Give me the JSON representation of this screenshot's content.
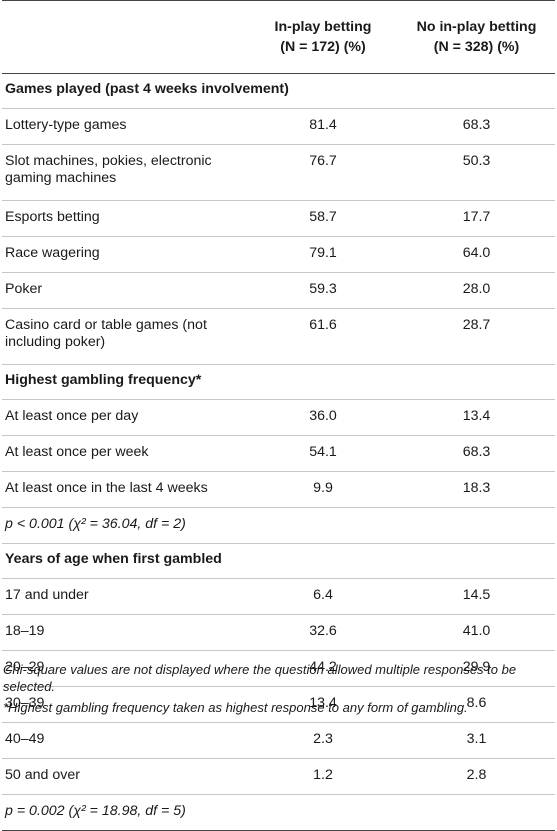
{
  "header": {
    "col1": "",
    "col2_line1": "In-play betting",
    "col2_line2": "(N = 172) (%)",
    "col3_line1": "No in-play betting",
    "col3_line2": "(N = 328) (%)"
  },
  "sections": [
    {
      "title": "Games played (past 4 weeks involvement)",
      "rows": [
        {
          "label": "Lottery-type games",
          "a": "81.4",
          "b": "68.3"
        },
        {
          "label": "Slot machines, pokies, electronic gaming machines",
          "a": "76.7",
          "b": "50.3"
        },
        {
          "label": "Esports betting",
          "a": "58.7",
          "b": "17.7"
        },
        {
          "label": "Race wagering",
          "a": "79.1",
          "b": "64.0"
        },
        {
          "label": "Poker",
          "a": "59.3",
          "b": "28.0"
        },
        {
          "label": "Casino card or table games (not including poker)",
          "a": "61.6",
          "b": "28.7"
        }
      ]
    },
    {
      "title": "Highest gambling frequency*",
      "rows": [
        {
          "label": "At least once per day",
          "a": "36.0",
          "b": "13.4"
        },
        {
          "label": "At least once per week",
          "a": "54.1",
          "b": "68.3"
        },
        {
          "label": "At least once in the last 4 weeks",
          "a": "9.9",
          "b": "18.3"
        }
      ],
      "stat": "p < 0.001 (χ² = 36.04, df = 2)"
    },
    {
      "title": "Years of age when first gambled",
      "rows": [
        {
          "label": "17 and under",
          "a": "6.4",
          "b": "14.5"
        },
        {
          "label": "18–19",
          "a": "32.6",
          "b": "41.0"
        },
        {
          "label": "20–29",
          "a": "44.2",
          "b": "29.9"
        },
        {
          "label": "30–39",
          "a": "13.4",
          "b": "8.6"
        },
        {
          "label": "40–49",
          "a": "2.3",
          "b": "3.1"
        },
        {
          "label": "50 and over",
          "a": "1.2",
          "b": "2.8"
        }
      ],
      "stat": "p = 0.002 (χ² = 18.98, df = 5)"
    }
  ],
  "footnotes": [
    "Chi-square values are not displayed where the question allowed multiple responses to be selected.",
    "*Highest gambling frequency taken as highest response to any form of gambling."
  ]
}
